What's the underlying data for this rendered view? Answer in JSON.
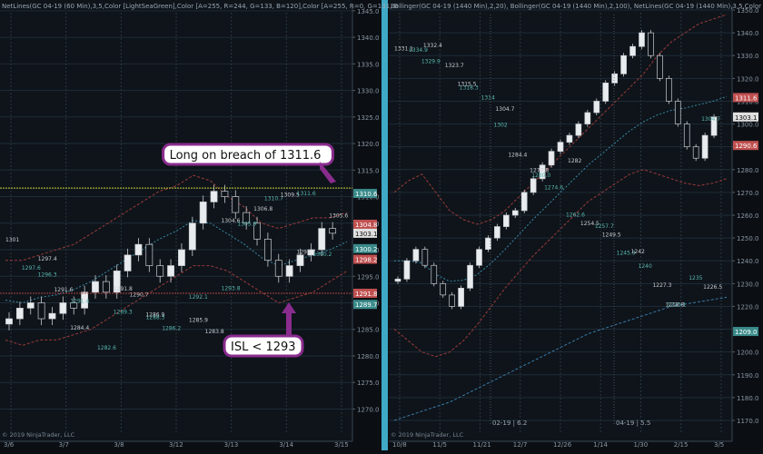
{
  "charts": {
    "left": {
      "header": "NetLines(GC 04-19 (60 Min),3,5,Color [LightSeaGreen],Color [A=255, R=244, G=133, B=120],Color [A=255, R=0, G=131, B",
      "copyright": "© 2019 NinjaTrader, LLC",
      "y_ticks": [
        "1345.0",
        "1340.0",
        "1335.0",
        "1330.0",
        "1325.0",
        "1320.0",
        "1315.0",
        "1310.0",
        "1305.0",
        "1300.0",
        "1295.0",
        "1290.0",
        "1285.0",
        "1280.0",
        "1275.0",
        "1270.0"
      ],
      "x_ticks": [
        "3/6",
        "3/7",
        "3/8",
        "3/12",
        "3/13",
        "3/14",
        "3/15"
      ],
      "price_badges": [
        {
          "label": "1310.6",
          "color": "#3a8a8a"
        },
        {
          "label": "1304.8",
          "color": "#c05050"
        },
        {
          "label": "1303.1",
          "color": "#e0e0e0"
        },
        {
          "label": "1300.2",
          "color": "#3a8a8a"
        },
        {
          "label": "1298.2",
          "color": "#c05050"
        },
        {
          "label": "1291.8",
          "color": "#c05050"
        },
        {
          "label": "1289.7",
          "color": "#3a8a8a"
        }
      ],
      "callouts": [
        {
          "text": "Long on breach of 1311.6"
        },
        {
          "text": "ISL < 1293"
        }
      ],
      "inline_labels": [
        "1301",
        "1297.6",
        "1297.4",
        "1296.3",
        "1291.6",
        "1291.4",
        "1284.4",
        "1282.6",
        "1291.8",
        "1289.3",
        "1290.7",
        "1288.3",
        "1286.9",
        "1286.2",
        "1285.9",
        "1292.1",
        "1283.8",
        "1293.8",
        "1304.6",
        "1305.9",
        "1306.8",
        "1310.7",
        "1309.5",
        "1311.6",
        "1298.7",
        "1300.2",
        "1305.6"
      ]
    },
    "right": {
      "header": "Bollinger(GC 04-19 (1440 Min),2,20), Bollinger(GC 04-19 (1440 Min),2,100), NetLines(GC 04-19 (1440 Min),3,5,Color",
      "copyright": "© 2019 NinjaTrader, LLC",
      "y_ticks": [
        "1350.0",
        "1340.0",
        "1330.0",
        "1320.0",
        "1310.0",
        "1300.0",
        "1290.0",
        "1280.0",
        "1270.0",
        "1260.0",
        "1250.0",
        "1240.0",
        "1230.0",
        "1220.0",
        "1210.0",
        "1200.0",
        "1190.0",
        "1180.0",
        "1170.0"
      ],
      "x_ticks": [
        "10/8",
        "11/5",
        "11/21",
        "12/7",
        "12/26",
        "1/14",
        "1/30",
        "2/15",
        "3/5"
      ],
      "price_badges": [
        {
          "label": "1311.6",
          "color": "#c05050"
        },
        {
          "label": "1303.1",
          "color": "#e0e0e0"
        },
        {
          "label": "1290.6",
          "color": "#c05050"
        },
        {
          "label": "1209.0",
          "color": "#3a8a8a"
        }
      ],
      "period_labels": [
        "02-19 | 6.2",
        "04-19 | 5.5"
      ],
      "inline_labels": [
        "1331.1",
        "1334.9",
        "1332.4",
        "1329.9",
        "1323.7",
        "1318.3",
        "1315.5",
        "1314",
        "1304.7",
        "1302",
        "1284.4",
        "1280.0",
        "1277.8",
        "1274.6",
        "1282",
        "1262.6",
        "1254.5",
        "1257.7",
        "1249.5",
        "1245.9",
        "1242",
        "1240",
        "1227.3",
        "1223.1",
        "1218.8",
        "1235",
        "1226.5",
        "1304.7"
      ]
    }
  },
  "chart_data": [
    {
      "type": "candlestick",
      "panel": "left (60 min)",
      "y_range": [
        1267,
        1346
      ],
      "x_categories": [
        "3/6",
        "3/7",
        "3/8",
        "3/12",
        "3/13",
        "3/14",
        "3/15"
      ],
      "close_path": [
        1287,
        1289,
        1290,
        1287,
        1288,
        1290,
        1289,
        1292,
        1294,
        1292,
        1296,
        1299,
        1301,
        1297,
        1295,
        1297,
        1300,
        1305,
        1309,
        1311,
        1310,
        1307,
        1305,
        1302,
        1298,
        1295,
        1297,
        1299,
        1300,
        1304,
        1303.1
      ],
      "bands": {
        "upper": [
          1298,
          1298,
          1299,
          1300,
          1301,
          1303,
          1305,
          1307,
          1309,
          1311,
          1312,
          1314,
          1313,
          1310,
          1308,
          1305,
          1304,
          1305,
          1306,
          1306,
          1307
        ],
        "lower": [
          1283,
          1282,
          1283,
          1283,
          1284,
          1285,
          1287,
          1289,
          1291,
          1293,
          1295,
          1297,
          1297,
          1296,
          1294,
          1292,
          1290,
          1291,
          1292,
          1294,
          1296
        ]
      },
      "levels": {
        "breach": 1311.6,
        "isl": 1293,
        "red_line": 1291.8,
        "teal_line": 1310.6
      }
    },
    {
      "type": "candlestick",
      "panel": "right (1440 min)",
      "y_range": [
        1168,
        1352
      ],
      "x_categories": [
        "10/8",
        "11/5",
        "11/21",
        "12/7",
        "12/26",
        "1/14",
        "1/30",
        "2/15",
        "3/5"
      ],
      "close_path": [
        1232,
        1240,
        1245,
        1238,
        1230,
        1225,
        1220,
        1228,
        1238,
        1245,
        1250,
        1255,
        1260,
        1262,
        1270,
        1276,
        1282,
        1288,
        1292,
        1295,
        1300,
        1305,
        1310,
        1318,
        1322,
        1330,
        1334,
        1340,
        1330,
        1320,
        1310,
        1300,
        1290,
        1285,
        1295,
        1303.1
      ],
      "bands": {
        "upper": [
          1270,
          1275,
          1278,
          1270,
          1262,
          1258,
          1256,
          1258,
          1262,
          1268,
          1274,
          1280,
          1286,
          1292,
          1298,
          1304,
          1310,
          1316,
          1322,
          1330,
          1336,
          1340,
          1344,
          1346,
          1348
        ],
        "lower": [
          1210,
          1205,
          1200,
          1198,
          1200,
          1205,
          1212,
          1220,
          1228,
          1235,
          1242,
          1248,
          1254,
          1260,
          1266,
          1270,
          1274,
          1278,
          1280,
          1278,
          1276,
          1274,
          1273,
          1274,
          1276
        ],
        "lower100": [
          1170,
          1172,
          1174,
          1176,
          1178,
          1181,
          1184,
          1187,
          1190,
          1193,
          1196,
          1199,
          1202,
          1205,
          1208,
          1210,
          1212,
          1214,
          1216,
          1218,
          1220,
          1221,
          1222,
          1223,
          1224
        ]
      },
      "levels": {
        "last": 1303.1,
        "resistance": 1311.6,
        "support": 1290.6
      }
    }
  ]
}
